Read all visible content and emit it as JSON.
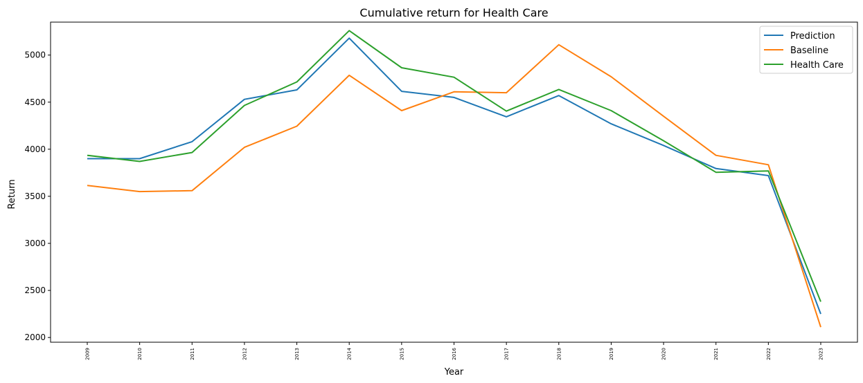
{
  "chart_data": {
    "type": "line",
    "title": "Cumulative return for Health Care",
    "xlabel": "Year",
    "ylabel": "Return",
    "x": [
      "2009",
      "2010",
      "2011",
      "2012",
      "2013",
      "2014",
      "2015",
      "2016",
      "2017",
      "2018",
      "2019",
      "2020",
      "2021",
      "2022",
      "2023"
    ],
    "ylim": [
      1950,
      5350
    ],
    "yticks": [
      2000,
      2500,
      3000,
      3500,
      4000,
      4500,
      5000
    ],
    "grid": false,
    "legend_position": "top-right",
    "series": [
      {
        "name": "Prediction",
        "color": "#1f77b4",
        "values": [
          3900,
          3900,
          4080,
          4530,
          4630,
          5180,
          4615,
          4550,
          4345,
          4570,
          4270,
          4040,
          3795,
          3720,
          2250
        ]
      },
      {
        "name": "Baseline",
        "color": "#ff7f0e",
        "values": [
          3615,
          3550,
          3560,
          4020,
          4245,
          4785,
          4410,
          4610,
          4600,
          5110,
          4770,
          4350,
          3935,
          3835,
          2110
        ]
      },
      {
        "name": "Health Care",
        "color": "#2ca02c",
        "values": [
          3935,
          3870,
          3965,
          4465,
          4715,
          5260,
          4865,
          4765,
          4405,
          4635,
          4410,
          4090,
          3755,
          3770,
          2380
        ]
      }
    ]
  }
}
